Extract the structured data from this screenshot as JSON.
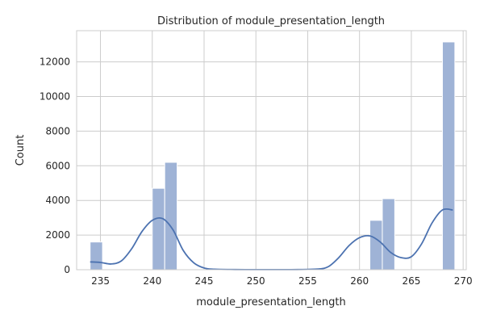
{
  "chart_data": {
    "type": "bar",
    "title": "Distribution of module_presentation_length",
    "xlabel": "module_presentation_length",
    "ylabel": "Count",
    "xlim": [
      232.7,
      270.3
    ],
    "ylim": [
      0,
      13800
    ],
    "xticks": [
      235,
      240,
      245,
      250,
      255,
      260,
      265,
      270
    ],
    "yticks": [
      0,
      2000,
      4000,
      6000,
      8000,
      10000,
      12000
    ],
    "grid": true,
    "bars": [
      {
        "x0": 234.0,
        "x1": 235.2,
        "value": 1600
      },
      {
        "x0": 240.0,
        "x1": 241.2,
        "value": 4700
      },
      {
        "x0": 241.2,
        "x1": 242.4,
        "value": 6200
      },
      {
        "x0": 261.0,
        "x1": 262.2,
        "value": 2850
      },
      {
        "x0": 262.2,
        "x1": 263.4,
        "value": 4100
      },
      {
        "x0": 268.0,
        "x1": 269.2,
        "value": 13150
      }
    ],
    "kde": {
      "x": [
        234,
        235,
        236,
        237,
        238,
        239,
        240,
        241,
        242,
        243,
        244,
        245,
        246,
        248,
        250,
        252,
        254,
        256,
        257,
        258,
        259,
        260,
        261,
        262,
        263,
        264,
        265,
        266,
        267,
        268,
        269
      ],
      "y": [
        450,
        420,
        330,
        500,
        1200,
        2200,
        2850,
        2950,
        2300,
        1100,
        400,
        100,
        30,
        10,
        5,
        5,
        10,
        40,
        180,
        700,
        1400,
        1850,
        1950,
        1600,
        1000,
        700,
        750,
        1500,
        2700,
        3450,
        3450
      ]
    },
    "colors": {
      "bar_fill": "#9fb3d6",
      "bar_edge": "#ffffff",
      "kde_line": "#4c72b0"
    }
  }
}
